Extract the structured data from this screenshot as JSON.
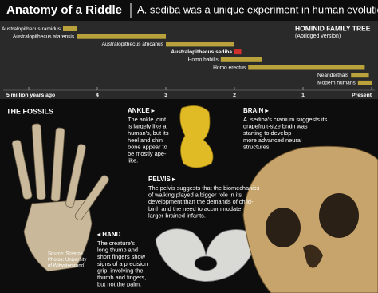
{
  "title": "Anatomy of a Riddle",
  "subtitle": "A. sediba was a unique experiment in human evolution",
  "chart_data": {
    "type": "range-bar",
    "title": "HOMINID FAMILY TREE",
    "subtitle": "(Abridged version)",
    "categories": [
      "Australopithecus ramidus",
      "Australopithecus afarensis",
      "Australopithecus africanus",
      "Australopithecus sediba",
      "Homo habilis",
      "Homo erectus",
      "Neanderthals",
      "Modern humans"
    ],
    "start": [
      4.5,
      4.3,
      3.0,
      2.0,
      2.2,
      1.8,
      0.3,
      0.2
    ],
    "end": [
      4.3,
      3.0,
      2.0,
      1.9,
      1.6,
      0.1,
      0.04,
      0
    ],
    "colors": [
      "#b9a23c",
      "#b9a23c",
      "#b9a23c",
      "#d0312d",
      "#b9a23c",
      "#b9a23c",
      "#b9a23c",
      "#b9a23c"
    ],
    "emphasis": [
      false,
      false,
      false,
      true,
      false,
      false,
      false,
      false
    ],
    "xlim": [
      5,
      0
    ],
    "xticks": [
      {
        "value": 5,
        "label": "5 million years ago"
      },
      4,
      3,
      2,
      1,
      {
        "value": 0,
        "label": "Present"
      }
    ]
  },
  "sections": {
    "fossils": {
      "title": "THE FOSSILS"
    },
    "ankle": {
      "title": "ANKLE ▸",
      "lines": [
        "The ankle joint",
        "is largely like a",
        "human's, but its",
        "heel and shin",
        "bone appear to",
        "be mostly ape-",
        "like."
      ]
    },
    "brain": {
      "title": "BRAIN ▸",
      "lines": [
        "A. sediba's cranium suggests its",
        "grapefruit-size brain was",
        "starting to develop",
        "more advanced neural",
        "structures."
      ]
    },
    "pelvis": {
      "title": "PELVIS ▸",
      "lines": [
        "The pelvis suggests that the biomechanics",
        "of walking played a bigger role in its",
        "development than the demands of child-",
        "birth and the need to accommodate",
        "larger-brained infants."
      ]
    },
    "hand": {
      "title": "◂ HAND",
      "lines": [
        "The creature's",
        "long thumb and",
        "short fingers show",
        "signs of a precision",
        "grip, involving the",
        "thumb and fingers,",
        "but not the palm."
      ]
    }
  },
  "source": [
    "Source: Science",
    "Photos: University",
    "of Witwatersrand"
  ]
}
